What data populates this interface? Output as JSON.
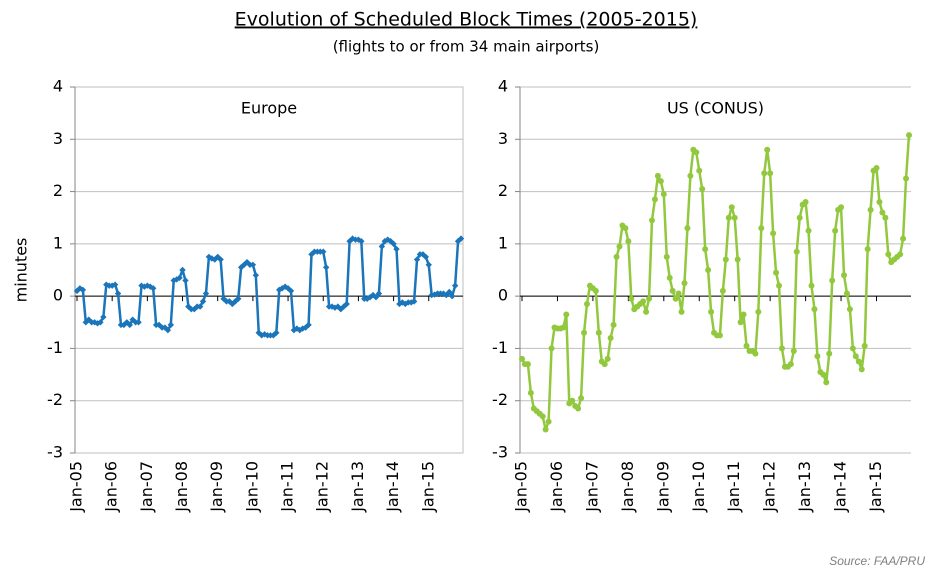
{
  "title": "Evolution of Scheduled Block Times (2005-2015)",
  "subtitle": "(flights to or from 34 main airports)",
  "source": "Source: FAA/PRU",
  "chart_data": [
    {
      "type": "line",
      "title": "Europe",
      "ylabel": "minutes",
      "categories": [
        "Jan-05",
        null,
        null,
        null,
        null,
        null,
        null,
        null,
        null,
        null,
        null,
        null,
        "Jan-06",
        null,
        null,
        null,
        null,
        null,
        null,
        null,
        null,
        null,
        null,
        null,
        "Jan-07",
        null,
        null,
        null,
        null,
        null,
        null,
        null,
        null,
        null,
        null,
        null,
        "Jan-08",
        null,
        null,
        null,
        null,
        null,
        null,
        null,
        null,
        null,
        null,
        null,
        "Jan-09",
        null,
        null,
        null,
        null,
        null,
        null,
        null,
        null,
        null,
        null,
        null,
        "Jan-10",
        null,
        null,
        null,
        null,
        null,
        null,
        null,
        null,
        null,
        null,
        null,
        "Jan-11",
        null,
        null,
        null,
        null,
        null,
        null,
        null,
        null,
        null,
        null,
        null,
        "Jan-12",
        null,
        null,
        null,
        null,
        null,
        null,
        null,
        null,
        null,
        null,
        null,
        "Jan-13",
        null,
        null,
        null,
        null,
        null,
        null,
        null,
        null,
        null,
        null,
        null,
        "Jan-14",
        null,
        null,
        null,
        null,
        null,
        null,
        null,
        null,
        null,
        null,
        null,
        "Jan-15",
        null,
        null,
        null,
        null,
        null,
        null,
        null,
        null,
        null,
        null,
        null
      ],
      "series": [
        {
          "name": "Europe",
          "color": "#1b75bb",
          "marker": "diamond",
          "values": [
            0.1,
            0.15,
            0.12,
            -0.5,
            -0.45,
            -0.5,
            -0.5,
            -0.52,
            -0.5,
            -0.4,
            0.22,
            0.2,
            0.2,
            0.22,
            0.05,
            -0.55,
            -0.55,
            -0.5,
            -0.55,
            -0.45,
            -0.5,
            -0.5,
            0.2,
            0.18,
            0.2,
            0.18,
            0.15,
            -0.55,
            -0.55,
            -0.6,
            -0.6,
            -0.65,
            -0.55,
            0.3,
            0.32,
            0.35,
            0.5,
            0.3,
            -0.2,
            -0.25,
            -0.25,
            -0.2,
            -0.2,
            -0.1,
            0.05,
            0.75,
            0.72,
            0.7,
            0.75,
            0.7,
            -0.05,
            -0.1,
            -0.1,
            -0.15,
            -0.1,
            -0.05,
            0.55,
            0.6,
            0.65,
            0.6,
            0.6,
            0.4,
            -0.7,
            -0.75,
            -0.73,
            -0.75,
            -0.75,
            -0.75,
            -0.7,
            0.12,
            0.15,
            0.18,
            0.15,
            0.1,
            -0.65,
            -0.62,
            -0.65,
            -0.62,
            -0.6,
            -0.55,
            0.8,
            0.85,
            0.85,
            0.85,
            0.85,
            0.55,
            -0.2,
            -0.2,
            -0.22,
            -0.2,
            -0.25,
            -0.2,
            -0.15,
            1.05,
            1.1,
            1.08,
            1.08,
            1.05,
            -0.05,
            -0.05,
            -0.02,
            0.02,
            -0.02,
            0.05,
            0.95,
            1.05,
            1.08,
            1.05,
            1.0,
            0.9,
            -0.15,
            -0.12,
            -0.15,
            -0.12,
            -0.12,
            -0.1,
            0.7,
            0.8,
            0.8,
            0.75,
            0.6,
            0.02,
            0.03,
            0.05,
            0.05,
            0.05,
            0.02,
            0.08,
            0.0,
            0.2,
            1.05,
            1.1
          ]
        }
      ],
      "ylim": [
        -3,
        4
      ],
      "yticks": [
        -3,
        -2,
        -1,
        0,
        1,
        2,
        3,
        4
      ],
      "grid": true
    },
    {
      "type": "line",
      "title": "US (CONUS)",
      "categories": [
        "Jan-05",
        null,
        null,
        null,
        null,
        null,
        null,
        null,
        null,
        null,
        null,
        null,
        "Jan-06",
        null,
        null,
        null,
        null,
        null,
        null,
        null,
        null,
        null,
        null,
        null,
        "Jan-07",
        null,
        null,
        null,
        null,
        null,
        null,
        null,
        null,
        null,
        null,
        null,
        "Jan-08",
        null,
        null,
        null,
        null,
        null,
        null,
        null,
        null,
        null,
        null,
        null,
        "Jan-09",
        null,
        null,
        null,
        null,
        null,
        null,
        null,
        null,
        null,
        null,
        null,
        "Jan-10",
        null,
        null,
        null,
        null,
        null,
        null,
        null,
        null,
        null,
        null,
        null,
        "Jan-11",
        null,
        null,
        null,
        null,
        null,
        null,
        null,
        null,
        null,
        null,
        null,
        "Jan-12",
        null,
        null,
        null,
        null,
        null,
        null,
        null,
        null,
        null,
        null,
        null,
        "Jan-13",
        null,
        null,
        null,
        null,
        null,
        null,
        null,
        null,
        null,
        null,
        null,
        "Jan-14",
        null,
        null,
        null,
        null,
        null,
        null,
        null,
        null,
        null,
        null,
        null,
        "Jan-15",
        null,
        null,
        null,
        null,
        null,
        null,
        null,
        null,
        null,
        null,
        null
      ],
      "series": [
        {
          "name": "US (CONUS)",
          "color": "#92c83e",
          "marker": "circle",
          "values": [
            -1.2,
            -1.3,
            -1.3,
            -1.85,
            -2.15,
            -2.2,
            -2.25,
            -2.3,
            -2.55,
            -2.4,
            -1.0,
            -0.6,
            -0.62,
            -0.62,
            -0.6,
            -0.35,
            -2.05,
            -2.0,
            -2.1,
            -2.15,
            -1.95,
            -0.7,
            -0.15,
            0.2,
            0.15,
            0.1,
            -0.7,
            -1.25,
            -1.3,
            -1.2,
            -0.8,
            -0.55,
            0.75,
            0.95,
            1.35,
            1.3,
            1.05,
            -0.05,
            -0.25,
            -0.2,
            -0.15,
            -0.1,
            -0.3,
            -0.05,
            1.45,
            1.85,
            2.3,
            2.2,
            1.95,
            0.75,
            0.35,
            0.1,
            -0.05,
            0.05,
            -0.3,
            0.25,
            1.3,
            2.3,
            2.8,
            2.75,
            2.4,
            2.05,
            0.9,
            0.5,
            -0.3,
            -0.7,
            -0.75,
            -0.75,
            0.1,
            0.7,
            1.5,
            1.7,
            1.5,
            0.7,
            -0.5,
            -0.35,
            -0.95,
            -1.05,
            -1.05,
            -1.1,
            -0.3,
            1.3,
            2.35,
            2.8,
            2.35,
            1.2,
            0.45,
            0.2,
            -1.0,
            -1.35,
            -1.35,
            -1.3,
            -1.05,
            0.85,
            1.5,
            1.75,
            1.8,
            1.25,
            0.2,
            -0.25,
            -1.15,
            -1.45,
            -1.5,
            -1.65,
            -1.1,
            0.3,
            1.25,
            1.65,
            1.7,
            0.4,
            0.05,
            -0.25,
            -1.0,
            -1.15,
            -1.25,
            -1.4,
            -0.95,
            0.9,
            1.65,
            2.4,
            2.45,
            1.8,
            1.6,
            1.5,
            0.8,
            0.65,
            0.7,
            0.75,
            0.8,
            1.1,
            2.25,
            3.08
          ]
        }
      ],
      "ylim": [
        -3,
        4
      ],
      "yticks": [
        -3,
        -2,
        -1,
        0,
        1,
        2,
        3,
        4
      ],
      "grid": true
    }
  ]
}
